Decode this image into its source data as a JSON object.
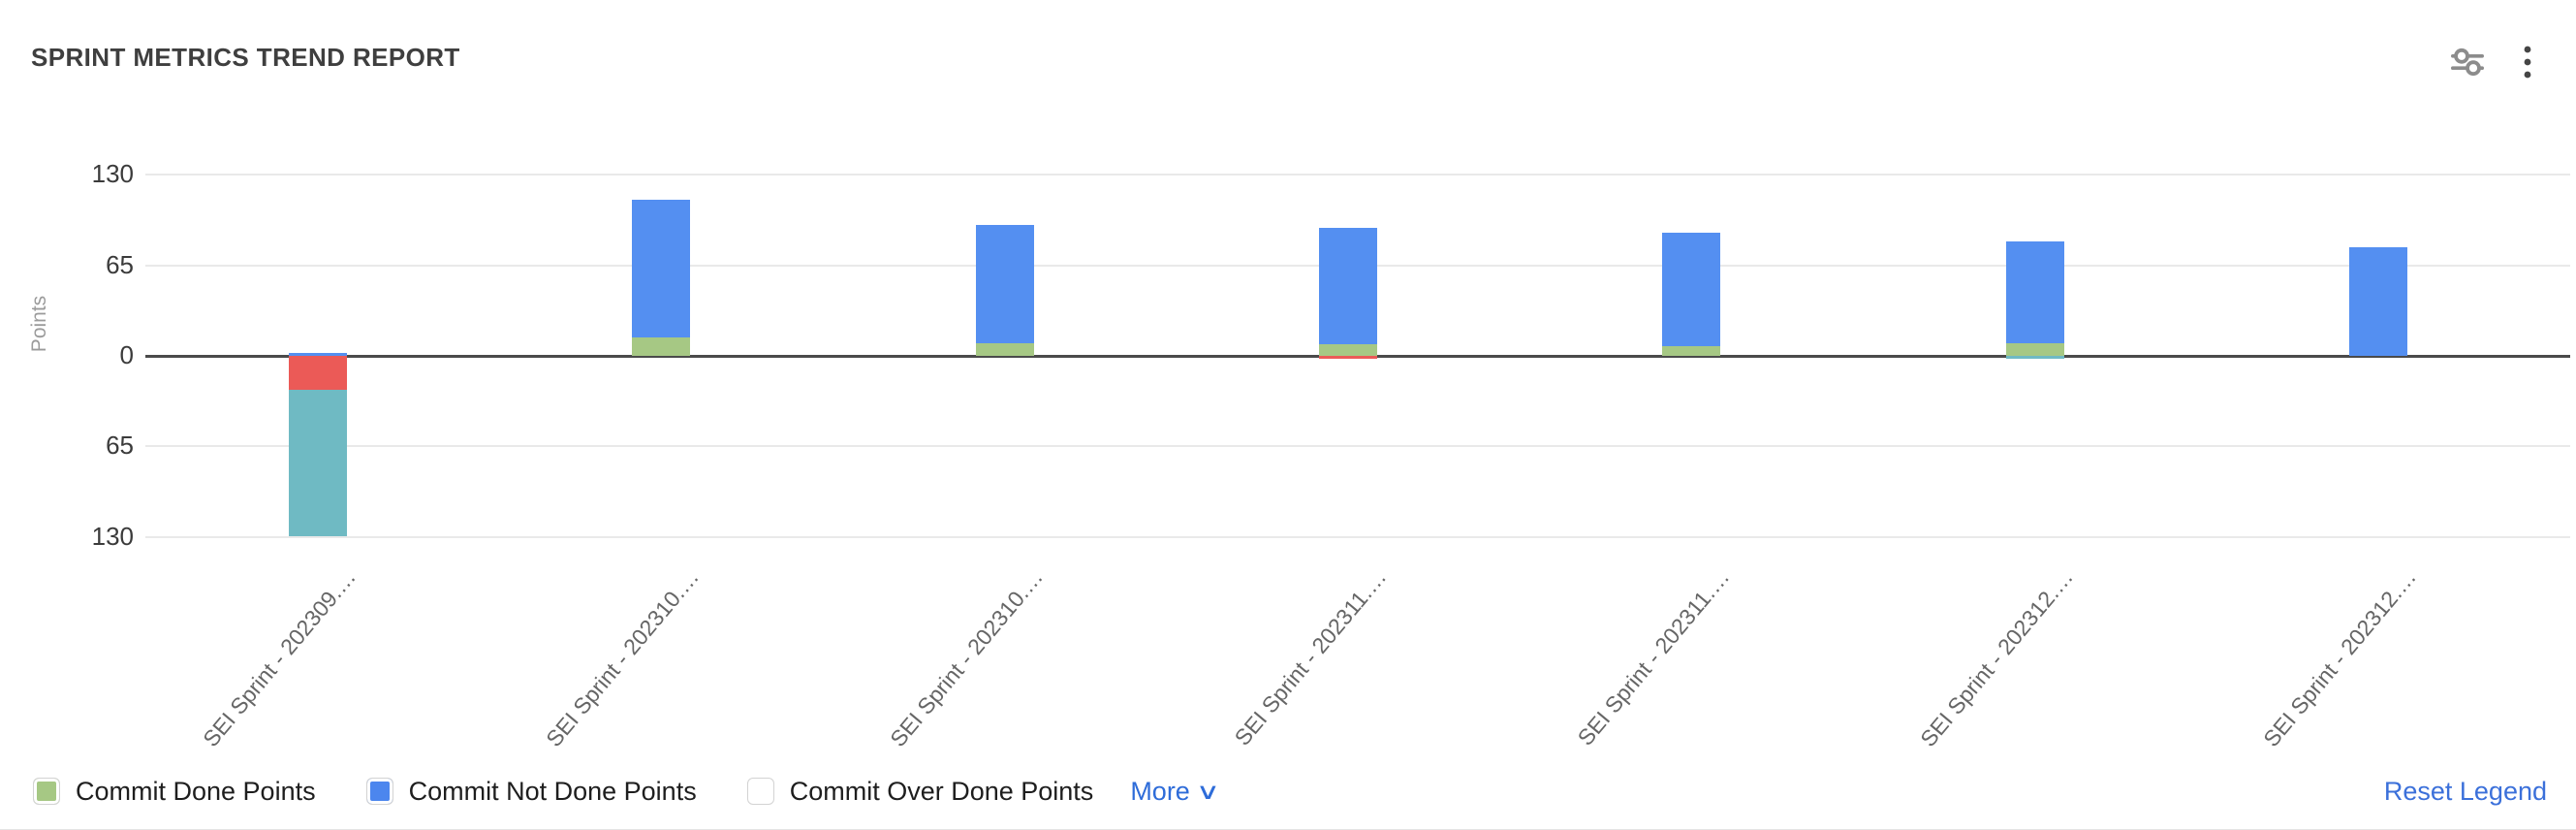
{
  "header": {
    "title": "SPRINT METRICS TREND REPORT",
    "icons": [
      {
        "name": "filter-sliders-icon"
      },
      {
        "name": "kebab-menu-icon"
      }
    ]
  },
  "chart_data": {
    "type": "bar",
    "stacked": true,
    "title": "SPRINT METRICS TREND REPORT",
    "ylabel": "Points",
    "xlabel": "",
    "ylim": [
      -130,
      130
    ],
    "ytick_values": [
      130,
      65,
      0,
      -65,
      -130
    ],
    "ytick_labels": [
      "130",
      "65",
      "0",
      "65",
      "130"
    ],
    "grid": true,
    "legend_position": "bottom",
    "categories": [
      "SEI Sprint - 202309.…",
      "SEI Sprint - 202310.…",
      "SEI Sprint - 202310.…",
      "SEI Sprint - 202311.…",
      "SEI Sprint - 202311.…",
      "SEI Sprint - 202312.…",
      "SEI Sprint - 202312.…"
    ],
    "series": [
      {
        "name": "Commit Done Points",
        "color": "#a6c884",
        "values": [
          0,
          13,
          9,
          8,
          7,
          9,
          0
        ]
      },
      {
        "name": "Commit Not Done Points",
        "color": "#548ff1",
        "values": [
          2,
          99,
          85,
          84,
          81,
          73,
          78
        ]
      },
      {
        "name": "unlabeled-red-series",
        "color": "#eb5a57",
        "values": [
          -24,
          0,
          0,
          -2,
          0,
          0,
          0
        ]
      },
      {
        "name": "unlabeled-teal-series",
        "color": "#6fbac3",
        "values": [
          -105,
          0,
          0,
          0,
          0,
          -2,
          0
        ]
      }
    ]
  },
  "legend": {
    "items": [
      {
        "label": "Commit Done Points",
        "color": "#a6c884",
        "checked": true
      },
      {
        "label": "Commit Not Done Points",
        "color": "#4c86ee",
        "checked": true
      },
      {
        "label": "Commit Over Done Points",
        "color": "#ffffff",
        "checked": false
      }
    ],
    "more_label": "More",
    "more_chevron": "∨",
    "more_color": "#2e6cd9",
    "reset_label": "Reset Legend",
    "reset_color": "#3b70da"
  }
}
